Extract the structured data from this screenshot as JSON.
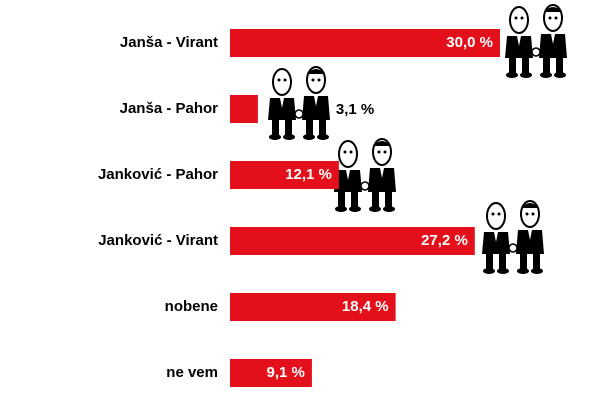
{
  "chart_data": {
    "type": "bar",
    "orientation": "horizontal",
    "categories": [
      "Janša - Virant",
      "Janša - Pahor",
      "Janković - Pahor",
      "Janković - Virant",
      "nobene",
      "ne vem"
    ],
    "values": [
      30.0,
      3.1,
      12.1,
      27.2,
      18.4,
      9.1
    ],
    "value_labels": [
      "30,0 %",
      "3,1 %",
      "12,1 %",
      "27,2 %",
      "18,4 %",
      "9,1 %"
    ],
    "color": "#e3101b"
  }
}
